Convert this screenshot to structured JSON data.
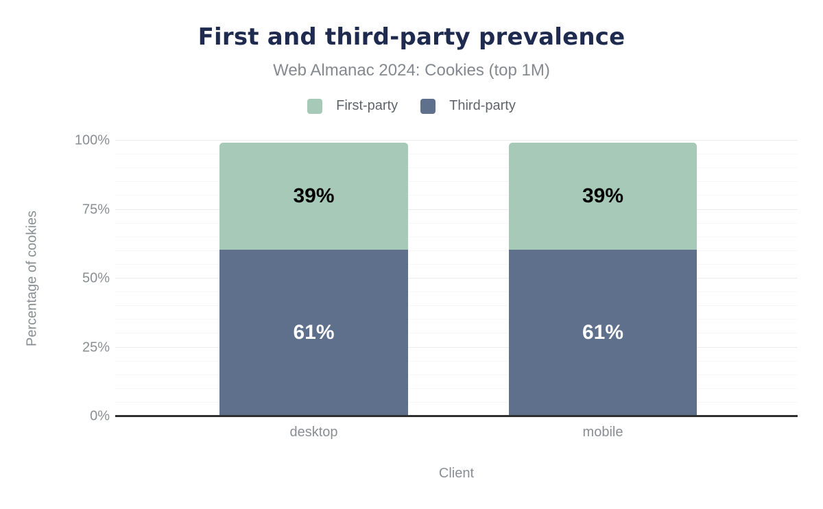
{
  "title": "First and third-party prevalence",
  "subtitle": "Web Almanac 2024: Cookies (top 1M)",
  "legend": [
    {
      "label": "First-party",
      "color": "#a6c9b8"
    },
    {
      "label": "Third-party",
      "color": "#5e708c"
    }
  ],
  "chart_data": {
    "type": "bar",
    "stacked": true,
    "title": "First and third-party prevalence",
    "subtitle": "Web Almanac 2024: Cookies (top 1M)",
    "categories": [
      "desktop",
      "mobile"
    ],
    "series": [
      {
        "name": "Third-party",
        "color": "#5e708c",
        "label_color": "#ffffff",
        "values": [
          61,
          61
        ]
      },
      {
        "name": "First-party",
        "color": "#a6c9b8",
        "label_color": "#000000",
        "values": [
          39,
          39
        ]
      }
    ],
    "value_suffix": "%",
    "xlabel": "Client",
    "ylabel": "Percentage of cookies",
    "ylim": [
      0,
      100
    ],
    "yticks": [
      {
        "value": 0,
        "label": "0%"
      },
      {
        "value": 25,
        "label": "25%"
      },
      {
        "value": 50,
        "label": "50%"
      },
      {
        "value": 75,
        "label": "75%"
      },
      {
        "value": 100,
        "label": "100%"
      }
    ],
    "grid": {
      "minor_step": 5,
      "major_step": 25
    },
    "legend_position": "top"
  },
  "colors": {
    "title": "#1e2b4e",
    "subtitle": "#85898f",
    "legend_text": "#5f646b",
    "axis_text": "#8a8e93",
    "axis_line": "#2f2f2f",
    "major_grid": "#ebebeb",
    "minor_grid": "#f7f7f7",
    "background": "#ffffff"
  }
}
